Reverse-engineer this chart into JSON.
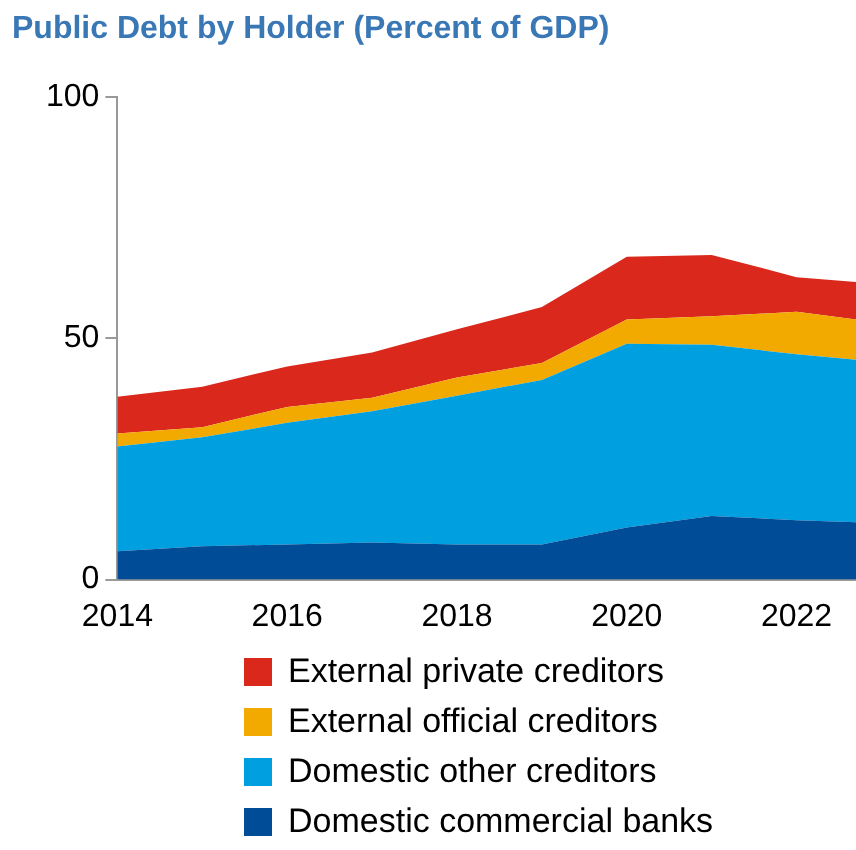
{
  "chart_data": {
    "type": "area",
    "title": "Public Debt by Holder (Percent of GDP)",
    "stacked": true,
    "x": [
      2014,
      2015,
      2016,
      2017,
      2018,
      2019,
      2020,
      2021,
      2022,
      2022.7
    ],
    "series": [
      {
        "name": "Domestic commercial banks",
        "color": "#004c97",
        "values": [
          5.9,
          6.9,
          7.3,
          7.7,
          7.3,
          7.3,
          10.8,
          13.2,
          12.3,
          11.9
        ]
      },
      {
        "name": "Domestic other creditors",
        "color": "#009fdf",
        "values": [
          21.7,
          22.6,
          25.2,
          27.2,
          30.8,
          34.1,
          38.1,
          35.5,
          34.4,
          33.7
        ]
      },
      {
        "name": "External official creditors",
        "color": "#f2a900",
        "values": [
          2.7,
          2.1,
          3.3,
          2.8,
          3.8,
          3.5,
          5.0,
          5.9,
          8.8,
          8.3
        ]
      },
      {
        "name": "External private creditors",
        "color": "#da291c",
        "values": [
          7.6,
          8.4,
          8.4,
          9.4,
          10.0,
          11.6,
          13.0,
          12.7,
          7.2,
          7.8
        ]
      }
    ],
    "xlim": [
      2014,
      2022.7
    ],
    "xticks": [
      2014,
      2016,
      2018,
      2020,
      2022
    ],
    "ylim": [
      0,
      100
    ],
    "yticks": [
      0,
      50,
      100
    ],
    "grid": false,
    "legend": "bottom"
  }
}
